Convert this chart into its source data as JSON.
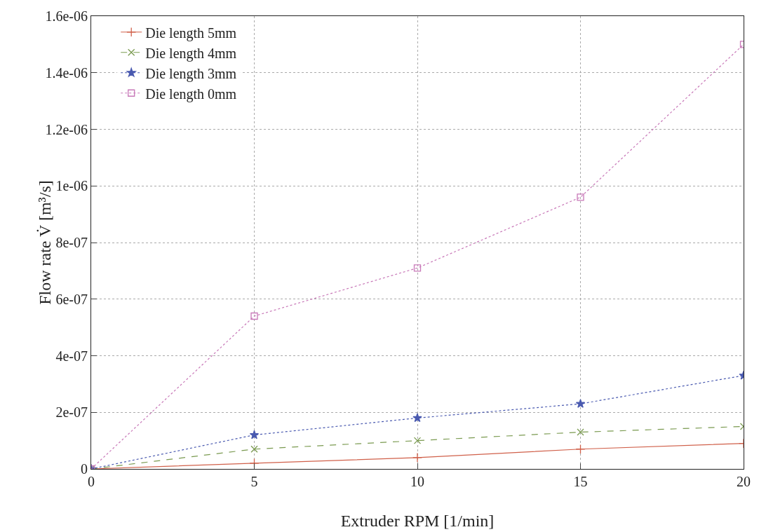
{
  "chart_data": {
    "type": "line",
    "xlabel": "Extruder RPM [1/min]",
    "ylabel": "Flow rate V̇ [m³/s]",
    "x": [
      0,
      5,
      10,
      15,
      20
    ],
    "series": [
      {
        "name": "Die length 5mm",
        "color": "#d0604a",
        "marker": "cross",
        "line_style": "solid",
        "values": [
          0,
          2e-08,
          4e-08,
          7e-08,
          9e-08
        ]
      },
      {
        "name": "Die length 4mm",
        "color": "#7a9a50",
        "marker": "x",
        "line_style": "dashed",
        "values": [
          0,
          7e-08,
          1e-07,
          1.3e-07,
          1.5e-07
        ]
      },
      {
        "name": "Die length 3mm",
        "color": "#4a5ab0",
        "marker": "star",
        "line_style": "dotted",
        "values": [
          0,
          1.2e-07,
          1.8e-07,
          2.3e-07,
          3.3e-07
        ]
      },
      {
        "name": "Die length 0mm",
        "color": "#c878b8",
        "marker": "square",
        "line_style": "dotted",
        "values": [
          0,
          5.4e-07,
          7.1e-07,
          9.6e-07,
          1.5e-06
        ]
      }
    ],
    "xlim": [
      0,
      20
    ],
    "xticks": [
      0,
      5,
      10,
      15,
      20
    ],
    "ylim": [
      0,
      1.6e-06
    ],
    "yticks": [
      0,
      {
        "value": 2e-07,
        "label": "2e-07"
      },
      {
        "value": 4e-07,
        "label": "4e-07"
      },
      {
        "value": 6e-07,
        "label": "6e-07"
      },
      {
        "value": 8e-07,
        "label": "8e-07"
      },
      {
        "value": 1e-06,
        "label": "1e-06"
      },
      {
        "value": 1.2e-06,
        "label": "1.2e-06"
      },
      {
        "value": 1.4e-06,
        "label": "1.4e-06"
      },
      {
        "value": 1.6e-06,
        "label": "1.6e-06"
      }
    ],
    "grid": true,
    "legend": "top left"
  }
}
